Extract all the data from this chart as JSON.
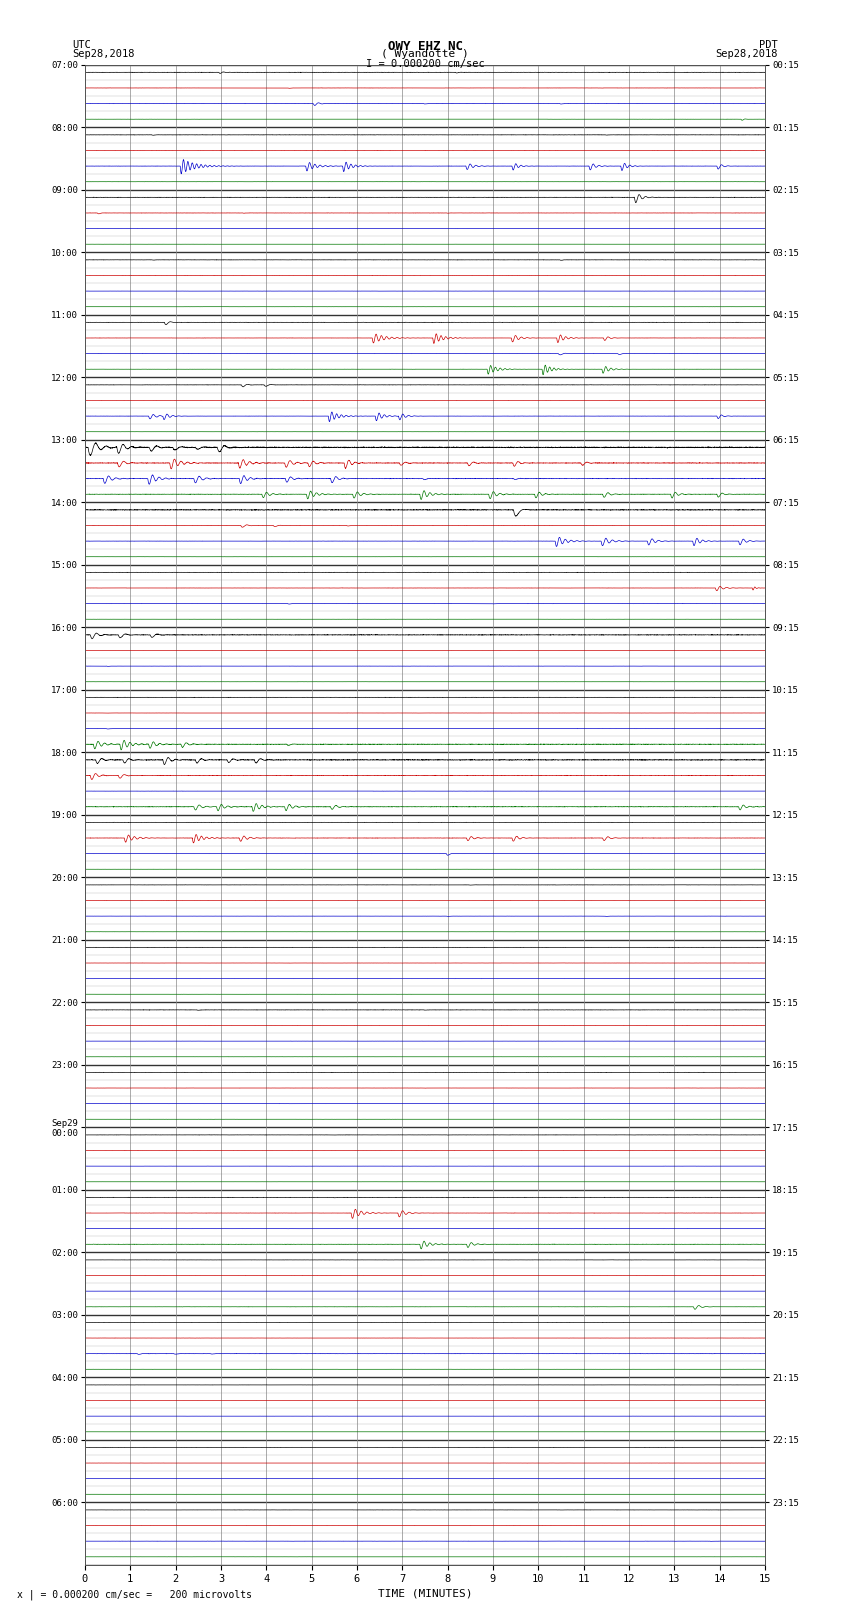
{
  "title_line1": "OWY EHZ NC",
  "title_line2": "( Wyandotte )",
  "scale_label": "I = 0.000200 cm/sec",
  "utc_label": "UTC",
  "utc_date": "Sep28,2018",
  "pdt_label": "PDT",
  "pdt_date": "Sep28,2018",
  "bottom_note": "x | = 0.000200 cm/sec =   200 microvolts",
  "xlabel": "TIME (MINUTES)",
  "bg_color": "#ffffff",
  "num_hours": 24,
  "subrows_per_hour": 4,
  "left_labels_utc": [
    "07:00",
    "08:00",
    "09:00",
    "10:00",
    "11:00",
    "12:00",
    "13:00",
    "14:00",
    "15:00",
    "16:00",
    "17:00",
    "18:00",
    "19:00",
    "20:00",
    "21:00",
    "22:00",
    "23:00",
    "Sep29\n00:00",
    "01:00",
    "02:00",
    "03:00",
    "04:00",
    "05:00",
    "06:00"
  ],
  "right_labels_pdt": [
    "00:15",
    "01:15",
    "02:15",
    "03:15",
    "04:15",
    "05:15",
    "06:15",
    "07:15",
    "08:15",
    "09:15",
    "10:15",
    "11:15",
    "12:15",
    "13:15",
    "14:15",
    "15:15",
    "16:15",
    "17:15",
    "18:15",
    "19:15",
    "20:15",
    "21:15",
    "22:15",
    "23:15"
  ],
  "colors": {
    "black": "#000000",
    "blue": "#0000cc",
    "red": "#cc0000",
    "green": "#007700"
  }
}
